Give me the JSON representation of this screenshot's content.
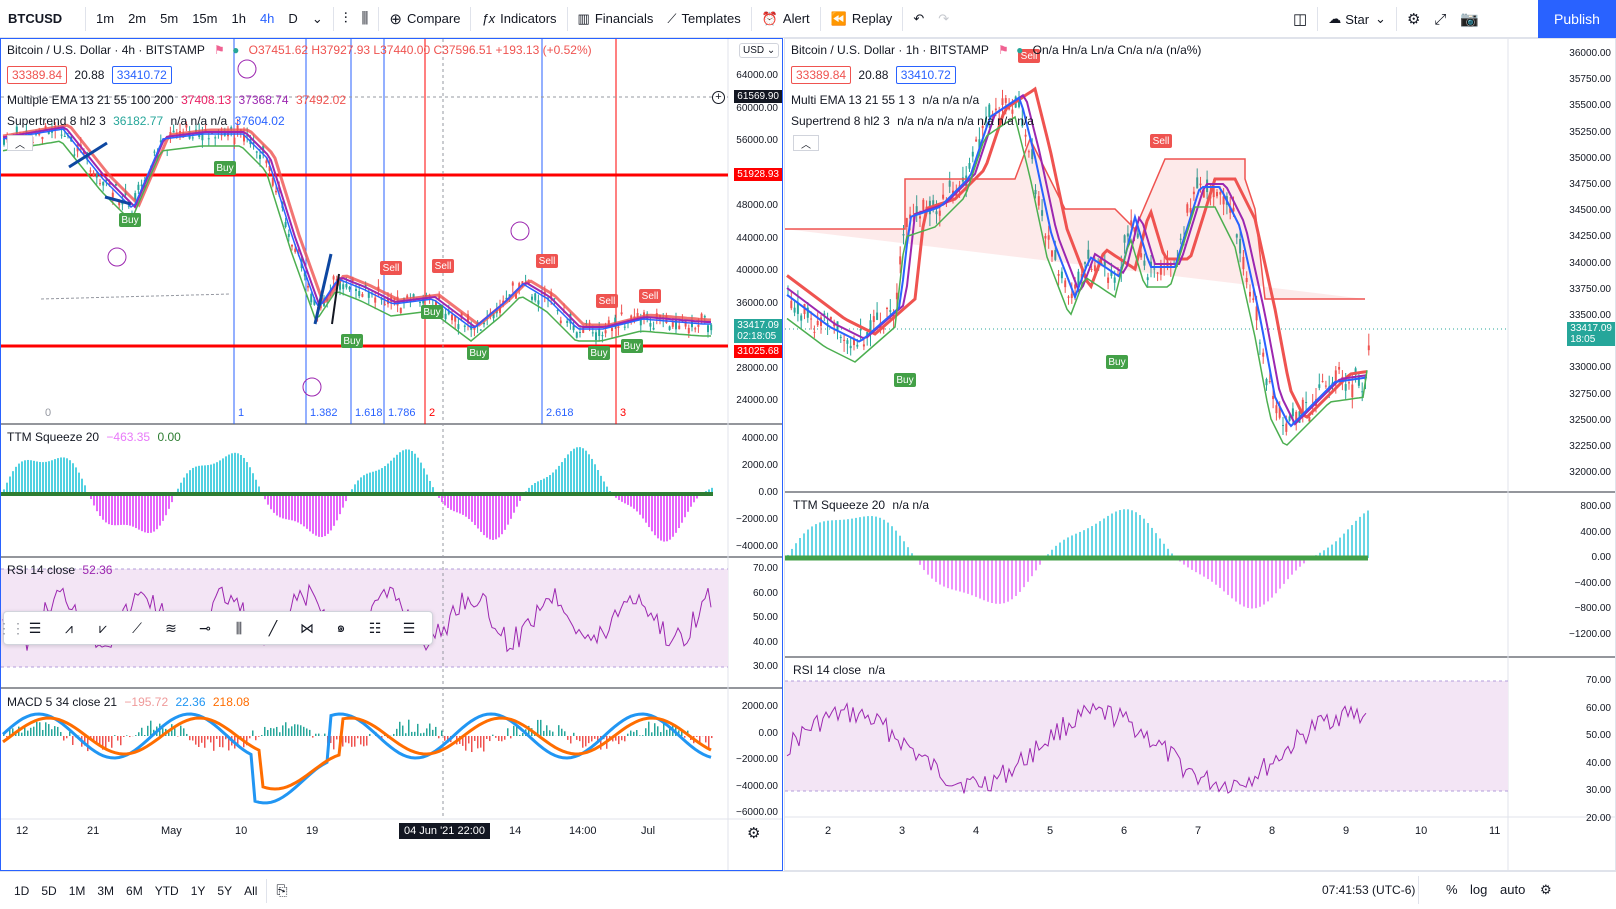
{
  "toolbar": {
    "symbol": "BTCUSD",
    "timeframes": [
      "1m",
      "2m",
      "5m",
      "15m",
      "1h",
      "4h",
      "D"
    ],
    "active_tf": "4h",
    "compare": "Compare",
    "indicators": "Indicators",
    "financials": "Financials",
    "templates": "Templates",
    "alert": "Alert",
    "replay": "Replay",
    "star": "Star",
    "publish": "Publish"
  },
  "left": {
    "title": "Bitcoin / U.S. Dollar · 4h · BITSTAMP",
    "ohlc": "O37451.62 H37927.93 L37440.00 C37596.51 +193.13 (+0.52%)",
    "bid": "33389.84",
    "spread": "20.88",
    "ask": "33410.72",
    "currency": "USD",
    "ema_legend": "Multiple EMA 13 21 55 100 200",
    "ema_vals": [
      "37408.13",
      "37368.74",
      "37492.02"
    ],
    "st_legend": "Supertrend 8 hl2 3",
    "st_vals": [
      "36182.77",
      "n/a n/a n/a",
      "37604.02"
    ],
    "price_scale": [
      "64000.00",
      "60000.00",
      "56000.00",
      "52000.00",
      "48000.00",
      "44000.00",
      "40000.00",
      "36000.00",
      "32000.00",
      "28000.00",
      "24000.00"
    ],
    "cursor_price": "61569.90",
    "line_top": "51928.93",
    "line_bottom": "31025.68",
    "last_price": "33417.09",
    "countdown": "02:18:05",
    "fib_labels": [
      "0",
      "1",
      "1.382",
      "1.618",
      "1.786",
      "2",
      "2.618",
      "3"
    ],
    "ttm_legend": "TTM Squeeze 20",
    "ttm_vals": [
      "−463.35",
      "0.00"
    ],
    "ttm_scale": [
      "4000.00",
      "2000.00",
      "0.00",
      "−2000.00",
      "−4000.00"
    ],
    "rsi_legend": "RSI 14 close",
    "rsi_val": "52.36",
    "rsi_scale": [
      "70.00",
      "60.00",
      "50.00",
      "40.00",
      "30.00"
    ],
    "macd_legend": "MACD 5 34 close 21",
    "macd_vals": [
      "−195.72",
      "22.36",
      "218.08"
    ],
    "macd_scale": [
      "2000.00",
      "0.00",
      "−2000.00",
      "−4000.00",
      "−6000.00"
    ],
    "time_axis": [
      "12",
      "21",
      "May",
      "10",
      "19",
      "14",
      "14:00",
      "Jul"
    ],
    "time_cursor": "04 Jun '21  22:00",
    "signals": [
      "Buy",
      "Sell"
    ]
  },
  "right": {
    "title": "Bitcoin / U.S. Dollar · 1h · BITSTAMP",
    "ohlc": "On/a Hn/a Ln/a Cn/a n/a (n/a%)",
    "bid": "33389.84",
    "spread": "20.88",
    "ask": "33410.72",
    "ema_legend": "Multi EMA 13 21 55 1 3",
    "ema_vals": "n/a n/a n/a",
    "st_legend": "Supertrend 8 hl2 3",
    "st_vals": "n/a n/a n/a n/a n/a n/a n/a",
    "price_scale": [
      "36000.00",
      "35750.00",
      "35500.00",
      "35250.00",
      "35000.00",
      "34750.00",
      "34500.00",
      "34250.00",
      "34000.00",
      "33750.00",
      "33500.00",
      "33250.00",
      "33000.00",
      "32750.00",
      "32500.00",
      "32250.00",
      "32000.00"
    ],
    "last_price": "33417.09",
    "countdown": "18:05",
    "ttm_legend": "TTM Squeeze 20",
    "ttm_vals": "n/a n/a",
    "ttm_scale": [
      "800.00",
      "400.00",
      "0.00",
      "−400.00",
      "−800.00",
      "−1200.00"
    ],
    "rsi_legend": "RSI 14 close",
    "rsi_val": "n/a",
    "rsi_scale": [
      "70.00",
      "60.00",
      "50.00",
      "40.00",
      "30.00",
      "20.00"
    ],
    "time_axis": [
      "2",
      "3",
      "4",
      "5",
      "6",
      "7",
      "8",
      "9",
      "10",
      "11"
    ]
  },
  "bottom": {
    "ranges": [
      "1D",
      "5D",
      "1M",
      "3M",
      "6M",
      "YTD",
      "1Y",
      "5Y",
      "All"
    ],
    "clock": "07:41:53 (UTC-6)",
    "percent": "%",
    "log": "log",
    "auto": "auto"
  },
  "colors": {
    "accent": "#2962ff",
    "up": "#26a69a",
    "down": "#ef5350",
    "red_line": "#ff0000",
    "rsi_band": "#f3e5f5",
    "wave": "#9c27b0"
  }
}
